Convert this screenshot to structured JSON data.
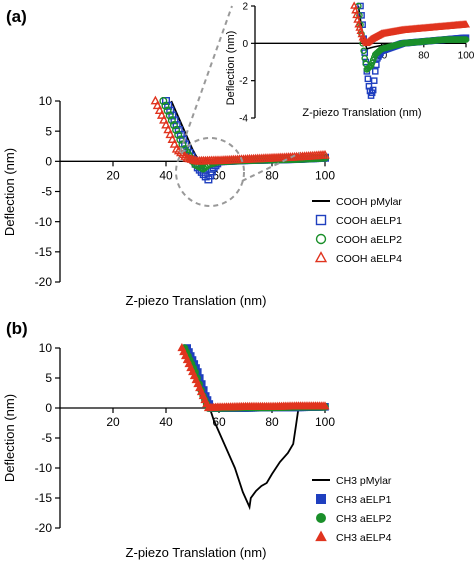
{
  "panels": {
    "a": {
      "label": "(a)"
    },
    "b": {
      "label": "(b)"
    }
  },
  "chart_data": [
    {
      "id": "a-main",
      "type": "scatter",
      "xlabel": "Z-piezo Translation (nm)",
      "ylabel": "Deflection (nm)",
      "xlim": [
        0,
        100
      ],
      "ylim": [
        -20,
        10
      ],
      "xticks": [
        20,
        40,
        60,
        80,
        100
      ],
      "yticks": [
        10,
        5,
        0,
        -5,
        -10,
        -15,
        -20
      ],
      "grid": false,
      "legend_position": "lower-right",
      "annotation": "dashed zoom circle around 50-55 nm, lines to inset",
      "series": [
        {
          "name": "COOH pMylar",
          "marker": "line",
          "color": "#000000",
          "points": [
            [
              42,
              10
            ],
            [
              46,
              6
            ],
            [
              50,
              2
            ],
            [
              53,
              -0.5
            ],
            [
              55,
              0.3
            ],
            [
              60,
              0
            ],
            [
              80,
              0.2
            ],
            [
              100,
              0.5
            ]
          ]
        },
        {
          "name": "COOH aELP1",
          "marker": "open-square",
          "color": "#1f3fbf",
          "points": [
            [
              40,
              10
            ],
            [
              44,
              6
            ],
            [
              48,
              2
            ],
            [
              52,
              -1
            ],
            [
              55,
              -2.5
            ],
            [
              56,
              -3
            ],
            [
              58,
              -1
            ],
            [
              60,
              0
            ],
            [
              70,
              0.2
            ],
            [
              80,
              0.3
            ],
            [
              90,
              0.4
            ],
            [
              100,
              0.6
            ]
          ]
        },
        {
          "name": "COOH aELP2",
          "marker": "open-circle",
          "color": "#1a8f2a",
          "points": [
            [
              39,
              10
            ],
            [
              43,
              6
            ],
            [
              47,
              2
            ],
            [
              51,
              -0.5
            ],
            [
              54,
              -1.2
            ],
            [
              56,
              -0.5
            ],
            [
              60,
              0
            ],
            [
              70,
              0.2
            ],
            [
              80,
              0.3
            ],
            [
              90,
              0.4
            ],
            [
              100,
              0.6
            ]
          ]
        },
        {
          "name": "COOH aELP4",
          "marker": "open-triangle",
          "color": "#e0341f",
          "points": [
            [
              36,
              10
            ],
            [
              40,
              6
            ],
            [
              44,
              2
            ],
            [
              48,
              0.5
            ],
            [
              52,
              0
            ],
            [
              60,
              0.1
            ],
            [
              70,
              0.3
            ],
            [
              80,
              0.5
            ],
            [
              90,
              0.7
            ],
            [
              100,
              1
            ]
          ]
        }
      ]
    },
    {
      "id": "a-inset",
      "type": "scatter",
      "xlabel": "Z-piezo Translation (nm)",
      "ylabel": "Deflection (nm)",
      "xlim": [
        0,
        100
      ],
      "ylim": [
        -4,
        2
      ],
      "xticks": [
        60,
        80,
        100
      ],
      "yticks": [
        2,
        0,
        -2,
        -4
      ],
      "grid": false,
      "series": [
        {
          "name": "COOH pMylar",
          "marker": "line",
          "color": "#000000",
          "points": [
            [
              49,
              2
            ],
            [
              51,
              0.5
            ],
            [
              53,
              -0.3
            ],
            [
              56,
              -0.2
            ],
            [
              65,
              0
            ],
            [
              80,
              0.1
            ],
            [
              100,
              0.2
            ]
          ]
        },
        {
          "name": "COOH aELP1",
          "marker": "open-square",
          "color": "#1f3fbf",
          "points": [
            [
              50,
              2
            ],
            [
              51,
              1
            ],
            [
              52,
              -0.5
            ],
            [
              53,
              -1.5
            ],
            [
              54,
              -2.3
            ],
            [
              55,
              -2.8
            ],
            [
              56,
              -2.5
            ],
            [
              57,
              -1.5
            ],
            [
              58,
              -0.8
            ],
            [
              60,
              -0.4
            ],
            [
              65,
              -0.2
            ],
            [
              70,
              0
            ],
            [
              80,
              0.1
            ],
            [
              90,
              0.2
            ],
            [
              100,
              0.3
            ]
          ]
        },
        {
          "name": "COOH aELP2",
          "marker": "open-circle",
          "color": "#1a8f2a",
          "points": [
            [
              49,
              2
            ],
            [
              50,
              1
            ],
            [
              51,
              0
            ],
            [
              52,
              -0.8
            ],
            [
              53,
              -1.4
            ],
            [
              55,
              -1.2
            ],
            [
              57,
              -0.6
            ],
            [
              60,
              -0.3
            ],
            [
              70,
              0
            ],
            [
              80,
              0.1
            ],
            [
              90,
              0.2
            ],
            [
              100,
              0.2
            ]
          ]
        },
        {
          "name": "COOH aELP4",
          "marker": "open-triangle",
          "color": "#e0341f",
          "points": [
            [
              47,
              2
            ],
            [
              49,
              1
            ],
            [
              51,
              0.3
            ],
            [
              53,
              0
            ],
            [
              55,
              0.2
            ],
            [
              60,
              0.5
            ],
            [
              70,
              0.7
            ],
            [
              80,
              0.8
            ],
            [
              90,
              0.9
            ],
            [
              100,
              1
            ]
          ]
        }
      ]
    },
    {
      "id": "b-main",
      "type": "scatter",
      "xlabel": "Z-piezo Translation (nm)",
      "ylabel": "Deflection (nm)",
      "xlim": [
        0,
        100
      ],
      "ylim": [
        -20,
        10
      ],
      "xticks": [
        20,
        40,
        60,
        80,
        100
      ],
      "yticks": [
        10,
        5,
        0,
        -5,
        -10,
        -15,
        -20
      ],
      "grid": false,
      "legend_position": "lower-right",
      "series": [
        {
          "name": "CH3 pMylar",
          "marker": "line",
          "color": "#000000",
          "points": [
            [
              47,
              10
            ],
            [
              51,
              6
            ],
            [
              55,
              2
            ],
            [
              58,
              -2
            ],
            [
              62,
              -6
            ],
            [
              66,
              -10
            ],
            [
              69,
              -14
            ],
            [
              71.5,
              -16.5
            ],
            [
              72,
              -15
            ],
            [
              74,
              -13.8
            ],
            [
              76,
              -13
            ],
            [
              78,
              -12.5
            ],
            [
              80,
              -11
            ],
            [
              83,
              -9
            ],
            [
              86,
              -7.5
            ],
            [
              88,
              -6
            ],
            [
              89,
              -3
            ],
            [
              90,
              0
            ],
            [
              100,
              0
            ]
          ]
        },
        {
          "name": "CH3 aELP1",
          "marker": "filled-square",
          "color": "#1f3fbf",
          "points": [
            [
              48,
              10
            ],
            [
              52,
              6
            ],
            [
              55,
              2
            ],
            [
              57,
              0
            ],
            [
              60,
              0
            ],
            [
              70,
              0
            ],
            [
              80,
              0.1
            ],
            [
              90,
              0.1
            ],
            [
              100,
              0.2
            ]
          ]
        },
        {
          "name": "CH3 aELP2",
          "marker": "filled-circle",
          "color": "#1a8f2a",
          "points": [
            [
              47,
              10
            ],
            [
              51,
              6
            ],
            [
              54,
              2
            ],
            [
              56,
              0
            ],
            [
              60,
              0
            ],
            [
              70,
              0.1
            ],
            [
              80,
              0.1
            ],
            [
              90,
              0.2
            ],
            [
              100,
              0.2
            ]
          ]
        },
        {
          "name": "CH3 aELP4",
          "marker": "filled-triangle",
          "color": "#e0341f",
          "points": [
            [
              46,
              10
            ],
            [
              50,
              6
            ],
            [
              54,
              2
            ],
            [
              56,
              0
            ],
            [
              60,
              0.1
            ],
            [
              70,
              0.2
            ],
            [
              80,
              0.2
            ],
            [
              90,
              0.3
            ],
            [
              100,
              0.3
            ]
          ]
        }
      ]
    }
  ]
}
